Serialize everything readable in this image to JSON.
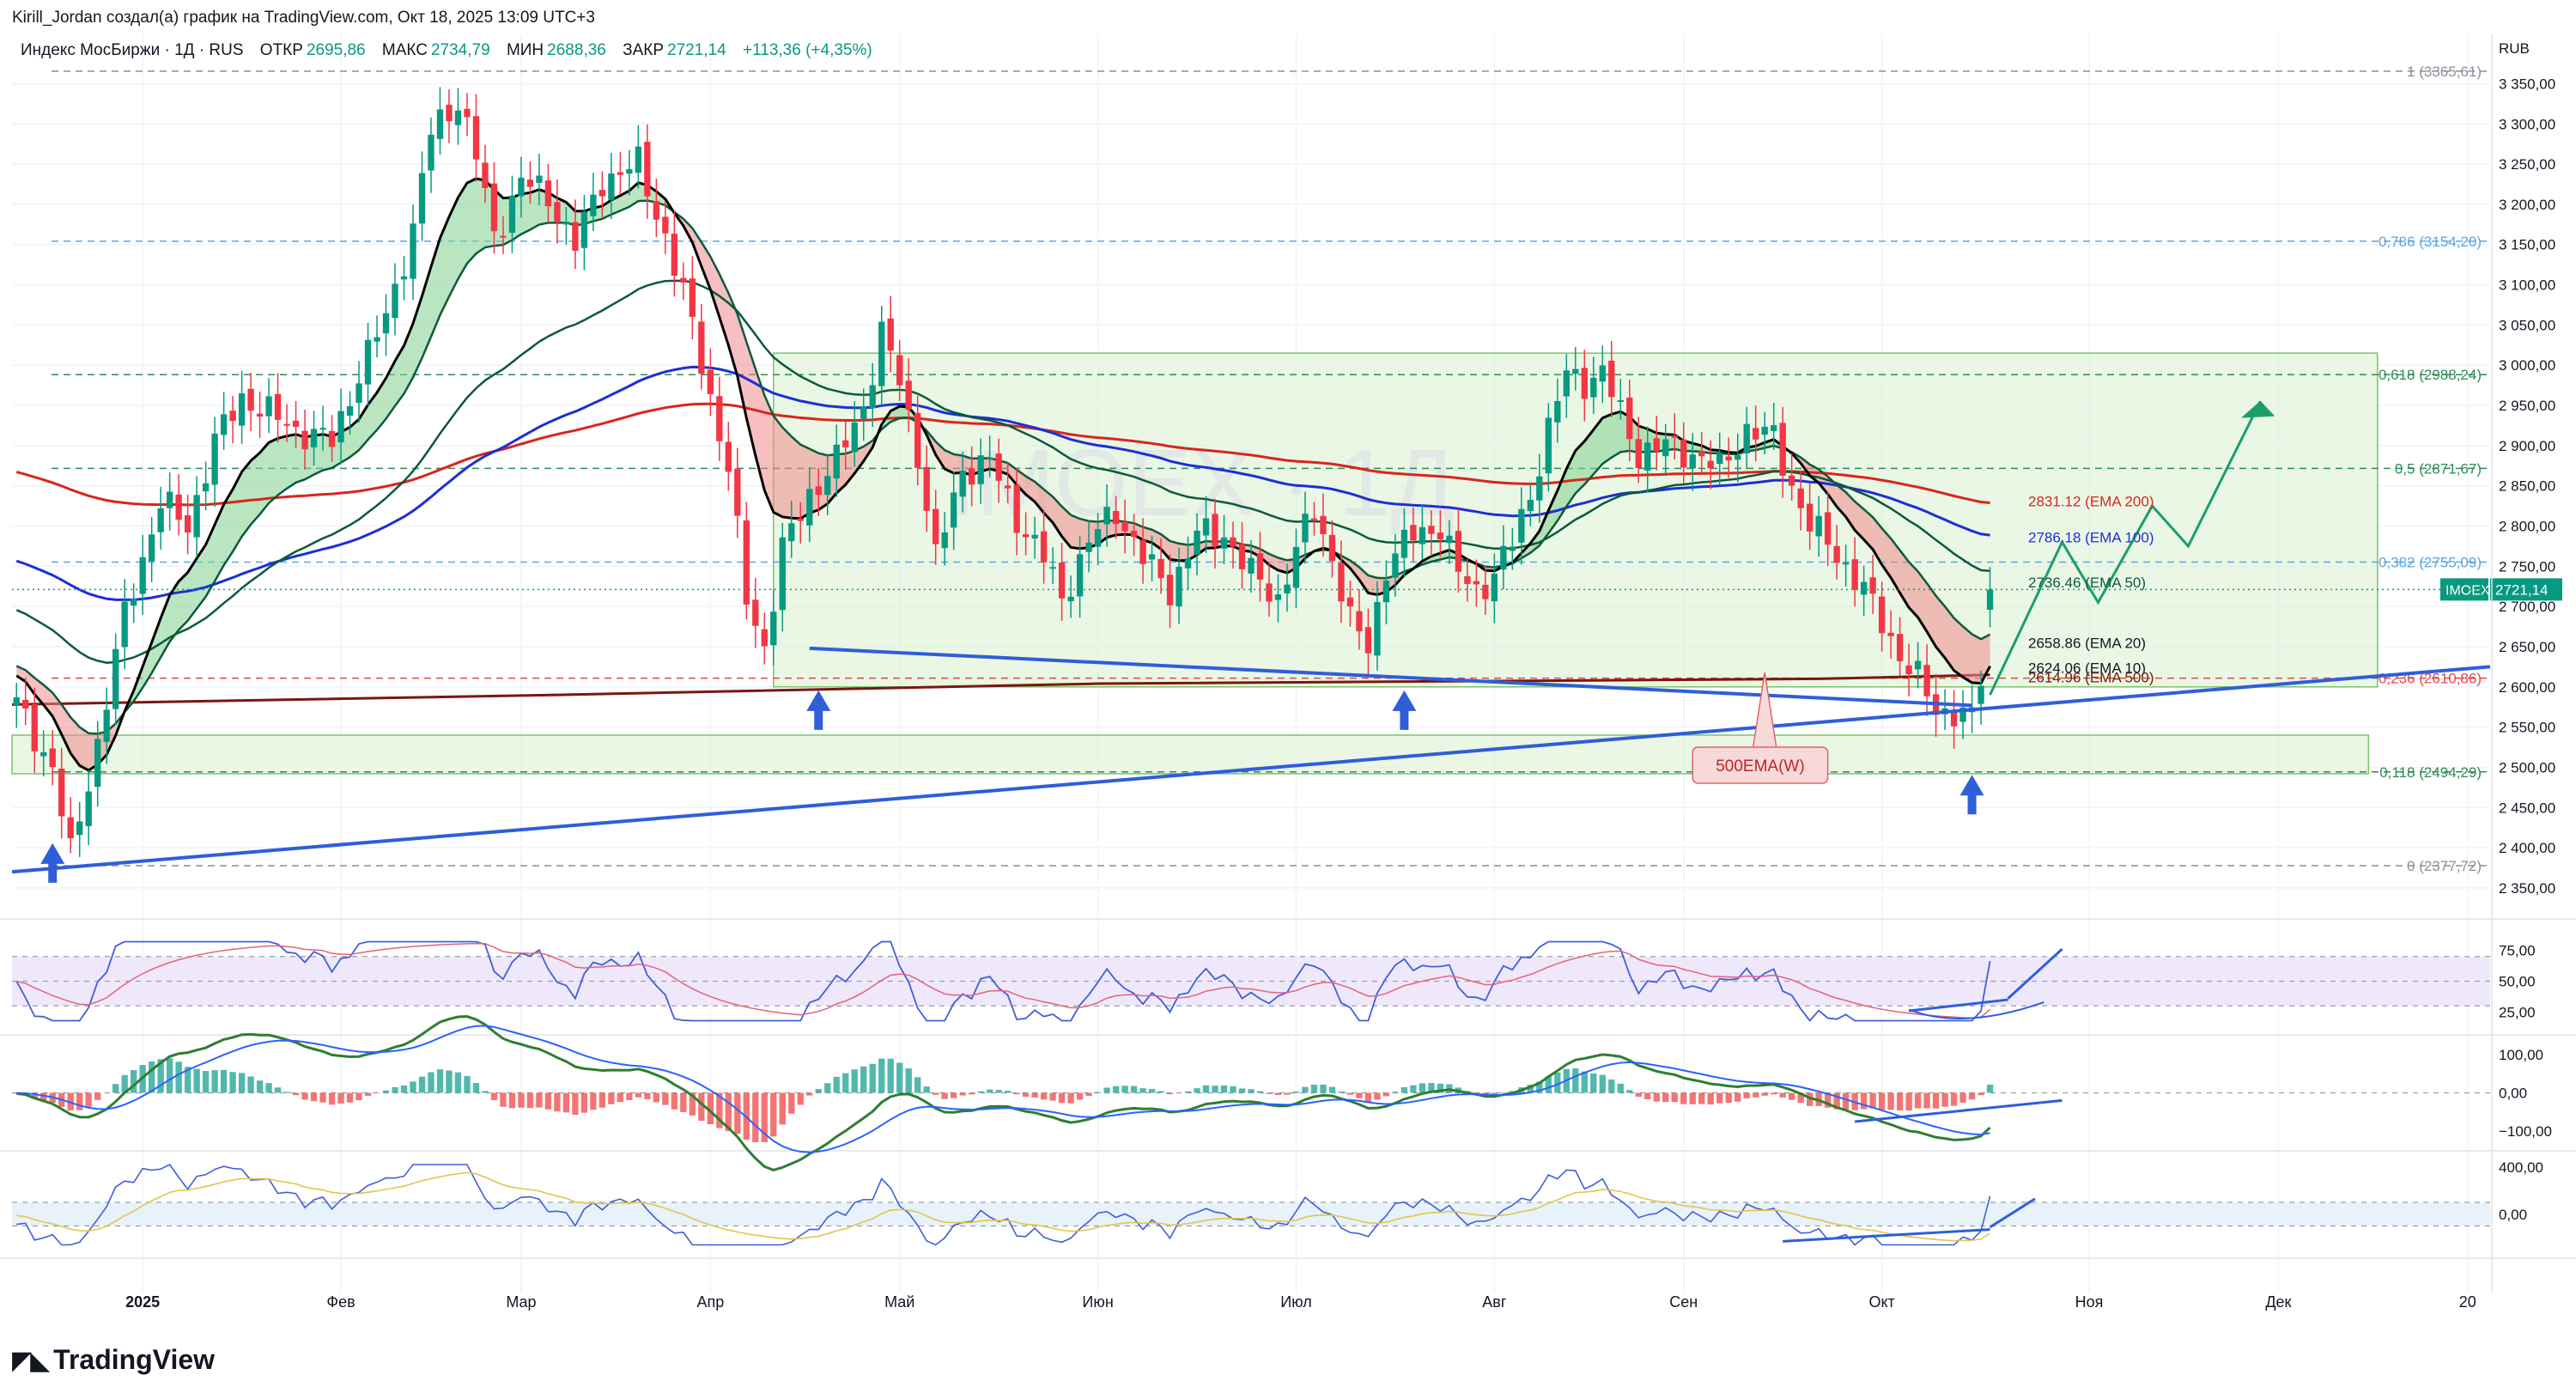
{
  "header": {
    "attribution": "Kirill_Jordan создал(а) график на TradingView.com, Окт 18, 2025 13:09 UTC+3"
  },
  "legend": {
    "symbol": "Индекс МосБиржи · 1Д · RUS",
    "open_label": "ОТКР",
    "open": "2695,86",
    "high_label": "МАКС",
    "high": "2734,79",
    "low_label": "МИН",
    "low": "2688,36",
    "close_label": "ЗАКР",
    "close": "2721,14",
    "change": "+113,36 (+4,35%)"
  },
  "watermark": "IMOEX · 1Д",
  "brand": "TradingView",
  "colors": {
    "up": "#089981",
    "down": "#f23645",
    "ema10": "#000000",
    "ema20": "#0b5a3a",
    "ema50": "#0b5a3a",
    "ema100": "#1d2fd6",
    "ema200": "#d8261c",
    "ema500w": "#7a1710",
    "trendline": "#2f5ed9",
    "range_box": "#d8f0d0",
    "fib": "#2e8b57"
  },
  "chart_data": {
    "type": "candlestick",
    "price_axis": {
      "currency": "RUB",
      "range": [
        2320,
        3390
      ],
      "ticks": [
        "3 350,00",
        "3 300,00",
        "3 250,00",
        "3 200,00",
        "3 150,00",
        "3 100,00",
        "3 050,00",
        "3 000,00",
        "2 950,00",
        "2 900,00",
        "2 850,00",
        "2 800,00",
        "2 750,00",
        "2 700,00",
        "2 650,00",
        "2 600,00",
        "2 550,00",
        "2 500,00",
        "2 450,00",
        "2 400,00",
        "2 350,00"
      ],
      "tick_values": [
        3350,
        3300,
        3250,
        3200,
        3150,
        3100,
        3050,
        3000,
        2950,
        2900,
        2850,
        2800,
        2750,
        2700,
        2650,
        2600,
        2550,
        2500,
        2450,
        2400,
        2350
      ]
    },
    "time_axis": {
      "labels": [
        "2025",
        "Фев",
        "Мар",
        "Апр",
        "Май",
        "Июн",
        "Июл",
        "Авг",
        "Сен",
        "Окт",
        "Ноя",
        "Дек",
        "20"
      ],
      "bars_offset": [
        14,
        36,
        56,
        77,
        98,
        120,
        142,
        164,
        185,
        207,
        230,
        251,
        272
      ]
    },
    "last_price": {
      "symbol": "IMOEX",
      "value": "2721,14",
      "value_num": 2721.14
    },
    "fib_levels": [
      {
        "ratio": "1",
        "label": "1 (3365,61)",
        "value": 3365.61
      },
      {
        "ratio": "0.786",
        "label": "0,786 (3154,20)",
        "value": 3154.2
      },
      {
        "ratio": "0.618",
        "label": "0,618 (2988,24)",
        "value": 2988.24
      },
      {
        "ratio": "0.5",
        "label": "0,5 (2871,67)",
        "value": 2871.67
      },
      {
        "ratio": "0.382",
        "label": "0,382 (2755,09)",
        "value": 2755.09
      },
      {
        "ratio": "0.236",
        "label": "0,236 (2610,86)",
        "value": 2610.86
      },
      {
        "ratio": "0.118",
        "label": "0,118 (2494,29)",
        "value": 2494.29
      },
      {
        "ratio": "0",
        "label": "0 (2377,72)",
        "value": 2377.72
      }
    ],
    "ema_labels": [
      {
        "name": "EMA 200",
        "label": "2831.12 (EMA 200)",
        "value": 2831.12
      },
      {
        "name": "EMA 100",
        "label": "2786.18 (EMA 100)",
        "value": 2786.18
      },
      {
        "name": "EMA 50",
        "label": "2736.46 (EMA 50)",
        "value": 2736.46
      },
      {
        "name": "EMA 20",
        "label": "2658.86 (EMA 20)",
        "value": 2658.86
      },
      {
        "name": "EMA 10",
        "label": "2624.06 (EMA 10)",
        "value": 2624.06
      },
      {
        "name": "EMA 500W",
        "label": "2614.96 (EMA 500)",
        "value": 2614.96
      }
    ],
    "annotation": "500EMA(W)",
    "anchors": [
      {
        "bar": 0,
        "close": 2578
      },
      {
        "bar": 4,
        "close": 2500
      },
      {
        "bar": 6,
        "close": 2390
      },
      {
        "bar": 9,
        "close": 2530
      },
      {
        "bar": 12,
        "close": 2690
      },
      {
        "bar": 16,
        "close": 2830
      },
      {
        "bar": 19,
        "close": 2800
      },
      {
        "bar": 22,
        "close": 2905
      },
      {
        "bar": 25,
        "close": 2960
      },
      {
        "bar": 28,
        "close": 2940
      },
      {
        "bar": 31,
        "close": 2920
      },
      {
        "bar": 35,
        "close": 2905
      },
      {
        "bar": 38,
        "close": 2990
      },
      {
        "bar": 41,
        "close": 3060
      },
      {
        "bar": 44,
        "close": 3170
      },
      {
        "bar": 46,
        "close": 3290
      },
      {
        "bar": 49,
        "close": 3330
      },
      {
        "bar": 51,
        "close": 3260
      },
      {
        "bar": 53,
        "close": 3160
      },
      {
        "bar": 56,
        "close": 3230
      },
      {
        "bar": 59,
        "close": 3210
      },
      {
        "bar": 62,
        "close": 3150
      },
      {
        "bar": 65,
        "close": 3230
      },
      {
        "bar": 69,
        "close": 3250
      },
      {
        "bar": 72,
        "close": 3160
      },
      {
        "bar": 75,
        "close": 3050
      },
      {
        "bar": 77,
        "close": 2960
      },
      {
        "bar": 79,
        "close": 2870
      },
      {
        "bar": 81,
        "close": 2710
      },
      {
        "bar": 83,
        "close": 2650
      },
      {
        "bar": 85,
        "close": 2770
      },
      {
        "bar": 88,
        "close": 2840
      },
      {
        "bar": 91,
        "close": 2880
      },
      {
        "bar": 94,
        "close": 2950
      },
      {
        "bar": 96,
        "close": 3040
      },
      {
        "bar": 98,
        "close": 2980
      },
      {
        "bar": 100,
        "close": 2890
      },
      {
        "bar": 102,
        "close": 2760
      },
      {
        "bar": 105,
        "close": 2870
      },
      {
        "bar": 108,
        "close": 2880
      },
      {
        "bar": 111,
        "close": 2810
      },
      {
        "bar": 114,
        "close": 2760
      },
      {
        "bar": 116,
        "close": 2710
      },
      {
        "bar": 119,
        "close": 2780
      },
      {
        "bar": 122,
        "close": 2820
      },
      {
        "bar": 125,
        "close": 2760
      },
      {
        "bar": 128,
        "close": 2720
      },
      {
        "bar": 131,
        "close": 2790
      },
      {
        "bar": 134,
        "close": 2790
      },
      {
        "bar": 137,
        "close": 2740
      },
      {
        "bar": 140,
        "close": 2710
      },
      {
        "bar": 142,
        "close": 2770
      },
      {
        "bar": 144,
        "close": 2820
      },
      {
        "bar": 146,
        "close": 2760
      },
      {
        "bar": 148,
        "close": 2680
      },
      {
        "bar": 150,
        "close": 2650
      },
      {
        "bar": 152,
        "close": 2750
      },
      {
        "bar": 155,
        "close": 2790
      },
      {
        "bar": 158,
        "close": 2800
      },
      {
        "bar": 160,
        "close": 2740
      },
      {
        "bar": 162,
        "close": 2720
      },
      {
        "bar": 164,
        "close": 2740
      },
      {
        "bar": 166,
        "close": 2780
      },
      {
        "bar": 168,
        "close": 2840
      },
      {
        "bar": 170,
        "close": 2920
      },
      {
        "bar": 172,
        "close": 2990
      },
      {
        "bar": 174,
        "close": 2980
      },
      {
        "bar": 176,
        "close": 2990
      },
      {
        "bar": 178,
        "close": 2940
      },
      {
        "bar": 180,
        "close": 2890
      },
      {
        "bar": 183,
        "close": 2900
      },
      {
        "bar": 186,
        "close": 2890
      },
      {
        "bar": 189,
        "close": 2870
      },
      {
        "bar": 192,
        "close": 2920
      },
      {
        "bar": 195,
        "close": 2910
      },
      {
        "bar": 197,
        "close": 2850
      },
      {
        "bar": 199,
        "close": 2800
      },
      {
        "bar": 201,
        "close": 2780
      },
      {
        "bar": 203,
        "close": 2750
      },
      {
        "bar": 205,
        "close": 2720
      },
      {
        "bar": 207,
        "close": 2680
      },
      {
        "bar": 209,
        "close": 2640
      },
      {
        "bar": 211,
        "close": 2610
      },
      {
        "bar": 213,
        "close": 2570
      },
      {
        "bar": 215,
        "close": 2570
      },
      {
        "bar": 217,
        "close": 2560
      },
      {
        "bar": 218,
        "close": 2610
      },
      {
        "bar": 219,
        "close": 2721
      }
    ],
    "rsi": {
      "ticks": [
        "75,00",
        "50,00",
        "25,00"
      ],
      "tick_values": [
        75,
        50,
        25
      ],
      "range": [
        10,
        90
      ]
    },
    "macd": {
      "ticks": [
        "100,00",
        "0,00",
        "−100,00"
      ],
      "tick_values": [
        100,
        0,
        -100
      ],
      "range": [
        -140,
        140
      ]
    },
    "cci": {
      "ticks": [
        "400,00",
        "0,00"
      ],
      "tick_values": [
        400,
        0
      ],
      "range": [
        -300,
        500
      ]
    }
  }
}
